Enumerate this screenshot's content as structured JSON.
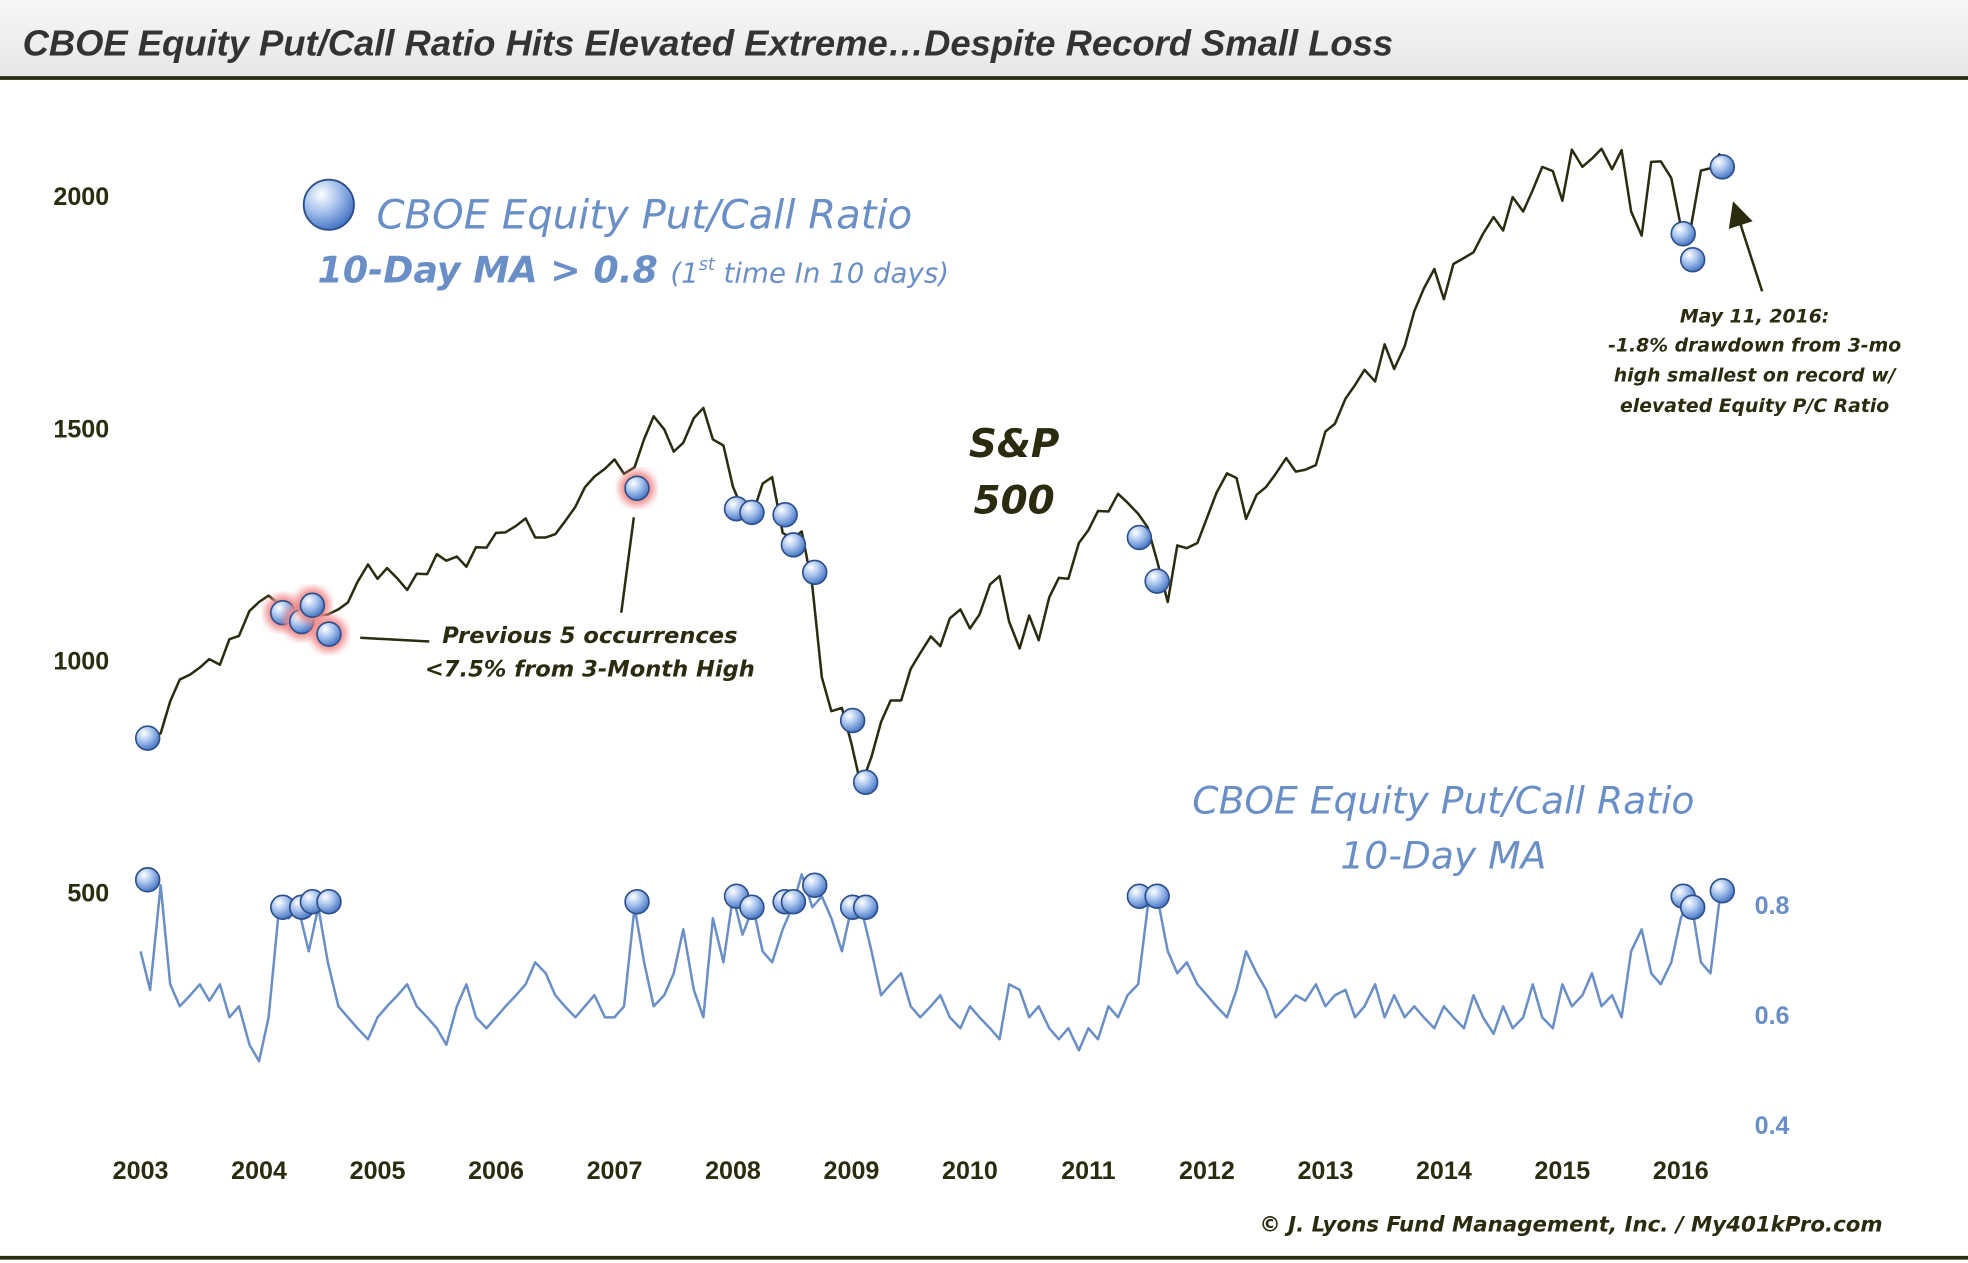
{
  "chart_data": {
    "type": "line",
    "title": "CBOE Equity Put/Call Ratio Hits Elevated Extreme…Despite Record Small Loss",
    "x": [
      2003.0,
      2003.08,
      2003.17,
      2003.25,
      2003.33,
      2003.42,
      2003.5,
      2003.58,
      2003.67,
      2003.75,
      2003.83,
      2003.92,
      2004.0,
      2004.08,
      2004.17,
      2004.25,
      2004.33,
      2004.42,
      2004.5,
      2004.58,
      2004.67,
      2004.75,
      2004.83,
      2004.92,
      2005.0,
      2005.08,
      2005.17,
      2005.25,
      2005.33,
      2005.42,
      2005.5,
      2005.58,
      2005.67,
      2005.75,
      2005.83,
      2005.92,
      2006.0,
      2006.08,
      2006.17,
      2006.25,
      2006.33,
      2006.42,
      2006.5,
      2006.58,
      2006.67,
      2006.75,
      2006.83,
      2006.92,
      2007.0,
      2007.08,
      2007.17,
      2007.25,
      2007.33,
      2007.42,
      2007.5,
      2007.58,
      2007.67,
      2007.75,
      2007.83,
      2007.92,
      2008.0,
      2008.08,
      2008.17,
      2008.25,
      2008.33,
      2008.42,
      2008.5,
      2008.58,
      2008.67,
      2008.75,
      2008.83,
      2008.92,
      2009.0,
      2009.08,
      2009.17,
      2009.25,
      2009.33,
      2009.42,
      2009.5,
      2009.58,
      2009.67,
      2009.75,
      2009.83,
      2009.92,
      2010.0,
      2010.08,
      2010.17,
      2010.25,
      2010.33,
      2010.42,
      2010.5,
      2010.58,
      2010.67,
      2010.75,
      2010.83,
      2010.92,
      2011.0,
      2011.08,
      2011.17,
      2011.25,
      2011.33,
      2011.42,
      2011.5,
      2011.58,
      2011.67,
      2011.75,
      2011.83,
      2011.92,
      2012.0,
      2012.08,
      2012.17,
      2012.25,
      2012.33,
      2012.42,
      2012.5,
      2012.58,
      2012.67,
      2012.75,
      2012.83,
      2012.92,
      2013.0,
      2013.08,
      2013.17,
      2013.25,
      2013.33,
      2013.42,
      2013.5,
      2013.58,
      2013.67,
      2013.75,
      2013.83,
      2013.92,
      2014.0,
      2014.08,
      2014.17,
      2014.25,
      2014.33,
      2014.42,
      2014.5,
      2014.58,
      2014.67,
      2014.75,
      2014.83,
      2014.92,
      2015.0,
      2015.08,
      2015.17,
      2015.25,
      2015.33,
      2015.42,
      2015.5,
      2015.58,
      2015.67,
      2015.75,
      2015.83,
      2015.92,
      2016.0,
      2016.08,
      2016.17,
      2016.25,
      2016.33
    ],
    "series": [
      {
        "color": "#2b2b10",
        "axis": "y",
        "values": [
          856,
          841,
          848,
          917,
          964,
          975,
          990,
          1008,
          996,
          1051,
          1058,
          1112,
          1131,
          1145,
          1126,
          1107,
          1121,
          1141,
          1102,
          1104,
          1115,
          1130,
          1174,
          1212,
          1181,
          1204,
          1181,
          1157,
          1192,
          1191,
          1234,
          1220,
          1229,
          1207,
          1249,
          1248,
          1280,
          1281,
          1295,
          1311,
          1270,
          1270,
          1277,
          1304,
          1336,
          1378,
          1401,
          1418,
          1438,
          1407,
          1421,
          1482,
          1531,
          1503,
          1455,
          1474,
          1527,
          1549,
          1481,
          1468,
          1379,
          1331,
          1323,
          1386,
          1400,
          1280,
          1267,
          1283,
          1166,
          969,
          896,
          903,
          826,
          735,
          798,
          873,
          919,
          919,
          987,
          1021,
          1057,
          1036,
          1096,
          1115,
          1074,
          1104,
          1169,
          1187,
          1089,
          1031,
          1102,
          1049,
          1141,
          1183,
          1181,
          1258,
          1286,
          1327,
          1326,
          1364,
          1345,
          1321,
          1292,
          1219,
          1131,
          1253,
          1247,
          1258,
          1312,
          1366,
          1408,
          1398,
          1310,
          1362,
          1379,
          1407,
          1441,
          1412,
          1416,
          1426,
          1498,
          1515,
          1569,
          1598,
          1631,
          1606,
          1686,
          1633,
          1682,
          1757,
          1806,
          1848,
          1783,
          1859,
          1872,
          1884,
          1924,
          1960,
          1931,
          2003,
          1972,
          2018,
          2068,
          2059,
          1995,
          2105,
          2068,
          2086,
          2107,
          2063,
          2104,
          1972,
          1920,
          2079,
          2080,
          2044,
          1940,
          1932,
          2060,
          2065,
          2097
        ]
      },
      {
        "color": "#6a8fc6",
        "axis": "y2",
        "values": [
          0.72,
          0.65,
          0.84,
          0.66,
          0.62,
          0.64,
          0.66,
          0.63,
          0.66,
          0.6,
          0.62,
          0.55,
          0.52,
          0.6,
          0.8,
          0.78,
          0.8,
          0.72,
          0.8,
          0.7,
          0.62,
          0.6,
          0.58,
          0.56,
          0.6,
          0.62,
          0.64,
          0.66,
          0.62,
          0.6,
          0.58,
          0.55,
          0.62,
          0.66,
          0.6,
          0.58,
          0.6,
          0.62,
          0.64,
          0.66,
          0.7,
          0.68,
          0.64,
          0.62,
          0.6,
          0.62,
          0.64,
          0.6,
          0.6,
          0.62,
          0.8,
          0.7,
          0.62,
          0.64,
          0.68,
          0.76,
          0.65,
          0.6,
          0.78,
          0.7,
          0.82,
          0.75,
          0.8,
          0.72,
          0.7,
          0.76,
          0.8,
          0.86,
          0.8,
          0.82,
          0.78,
          0.72,
          0.8,
          0.8,
          0.72,
          0.64,
          0.66,
          0.68,
          0.62,
          0.6,
          0.62,
          0.64,
          0.6,
          0.58,
          0.62,
          0.6,
          0.58,
          0.56,
          0.66,
          0.65,
          0.6,
          0.62,
          0.58,
          0.56,
          0.58,
          0.54,
          0.58,
          0.56,
          0.62,
          0.6,
          0.64,
          0.66,
          0.8,
          0.82,
          0.72,
          0.68,
          0.7,
          0.66,
          0.64,
          0.62,
          0.6,
          0.65,
          0.72,
          0.68,
          0.65,
          0.6,
          0.62,
          0.64,
          0.63,
          0.66,
          0.62,
          0.64,
          0.65,
          0.6,
          0.62,
          0.66,
          0.6,
          0.64,
          0.6,
          0.62,
          0.6,
          0.58,
          0.62,
          0.6,
          0.58,
          0.64,
          0.6,
          0.57,
          0.62,
          0.58,
          0.6,
          0.66,
          0.6,
          0.58,
          0.66,
          0.62,
          0.64,
          0.68,
          0.62,
          0.64,
          0.6,
          0.72,
          0.76,
          0.68,
          0.66,
          0.7,
          0.78,
          0.82,
          0.7,
          0.68,
          0.82
        ]
      },
      {
        "marker": "circle",
        "glow": "#f08c8c",
        "axis": "y",
        "x": [
          2004.2,
          2004.36,
          2004.45,
          2004.59,
          2007.19
        ],
        "values": [
          1108,
          1089,
          1124,
          1062,
          1376
        ]
      },
      {
        "marker": "circle",
        "axis": "y",
        "x": [
          2003.06,
          2008.03,
          2008.16,
          2008.44,
          2008.51,
          2008.69,
          2009.01,
          2009.12,
          2011.43,
          2011.58,
          2016.02,
          2016.1,
          2016.35
        ],
        "values": [
          838,
          1332,
          1324,
          1319,
          1254,
          1195,
          876,
          743,
          1270,
          1176,
          1924,
          1868,
          2068
        ]
      },
      {
        "marker": "circle",
        "axis": "y2",
        "x": [
          2003.06,
          2004.2,
          2004.36,
          2004.45,
          2004.59,
          2007.19,
          2008.03,
          2008.16,
          2008.44,
          2008.51,
          2008.69,
          2009.01,
          2009.12,
          2011.43,
          2011.58,
          2016.02,
          2016.1,
          2016.35
        ],
        "values": [
          0.85,
          0.8,
          0.8,
          0.81,
          0.81,
          0.81,
          0.82,
          0.8,
          0.81,
          0.81,
          0.84,
          0.8,
          0.8,
          0.82,
          0.82,
          0.82,
          0.8,
          0.83
        ]
      }
    ],
    "xlim": [
      2003,
      2016.5
    ],
    "xticks": [
      2003,
      2004,
      2005,
      2006,
      2007,
      2008,
      2009,
      2010,
      2011,
      2012,
      2013,
      2014,
      2015,
      2016
    ],
    "ylim": [
      0,
      2250
    ],
    "yticks": [
      500,
      1000,
      1500,
      2000
    ],
    "y2lim": [
      0.4,
      2.3
    ],
    "y2ticks": [
      0.4,
      0.6,
      0.8
    ],
    "annotations": [
      "CBOE Equity Put/Call Ratio",
      "10-Day MA > 0.8",
      "(1",
      "st",
      " time In 10 days)",
      "S&P",
      "500",
      "CBOE Equity Put/Call Ratio",
      "10-Day MA",
      "Previous 5 occurrences",
      "<7.5% from 3-Month High",
      "May 11, 2016:",
      "-1.8% drawdown from 3-mo",
      "high smallest on record w/",
      "elevated Equity P/C Ratio"
    ],
    "source": "© J. Lyons Fund Management, Inc. / My401kPro.com"
  }
}
